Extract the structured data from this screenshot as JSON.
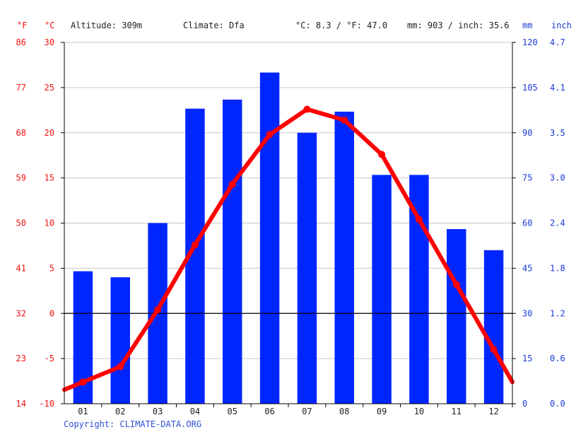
{
  "header": {
    "unit_f": "°F",
    "unit_c": "°C",
    "altitude": "Altitude: 309m",
    "climate": "Climate: Dfa",
    "temp_avg": "°C: 8.3 / °F: 47.0",
    "precip_total": "mm: 903 / inch: 35.6",
    "unit_mm": "mm",
    "unit_inch": "inch"
  },
  "copyright": "Copyright: CLIMATE-DATA.ORG",
  "colors": {
    "bar": "#0026ff",
    "line": "#ff0000",
    "axis_red": "#ee1111",
    "axis_blue": "#1a3bd8"
  },
  "chart_data": {
    "type": "bar",
    "categories": [
      "01",
      "02",
      "03",
      "04",
      "05",
      "06",
      "07",
      "08",
      "09",
      "10",
      "11",
      "12"
    ],
    "series": [
      {
        "type": "bar",
        "axis": "right",
        "values": [
          44,
          42,
          60,
          98,
          101,
          110,
          90,
          97,
          76,
          76,
          58,
          51
        ]
      },
      {
        "type": "line",
        "axis": "left",
        "values": [
          -7.6,
          -5.9,
          0.4,
          7.6,
          14.3,
          19.8,
          22.6,
          21.4,
          17.6,
          10.4,
          3.2,
          -4.0
        ]
      }
    ],
    "left_axis": {
      "ticks_c": [
        "30",
        "25",
        "20",
        "15",
        "10",
        "5",
        "0",
        "-5",
        "-10"
      ],
      "ticks_f": [
        "86",
        "77",
        "68",
        "59",
        "50",
        "41",
        "32",
        "23",
        "14"
      ],
      "ylim": [
        -10,
        30
      ]
    },
    "right_axis": {
      "ticks_mm": [
        "120",
        "105",
        "90",
        "75",
        "60",
        "45",
        "30",
        "15",
        "0"
      ],
      "ticks_inch": [
        "4.7",
        "4.1",
        "3.5",
        "3.0",
        "2.4",
        "1.8",
        "1.2",
        "0.6",
        "0.0"
      ],
      "ylim": [
        0,
        120
      ]
    },
    "grid": true
  }
}
